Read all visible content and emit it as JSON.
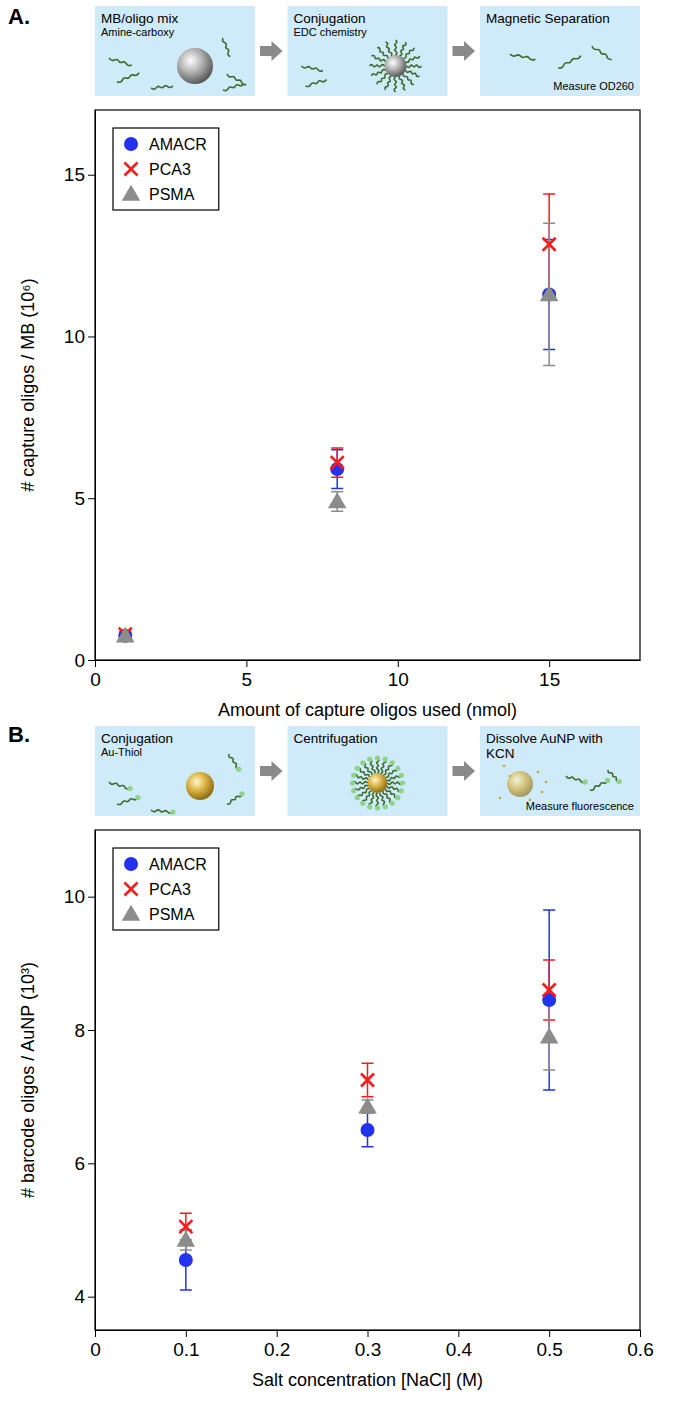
{
  "chart_data": [
    {
      "panel": "A.",
      "schematic": [
        {
          "title": "MB/oligo mix",
          "note": "Amine-carboxy"
        },
        {
          "title": "Conjugation",
          "note": "EDC chemistry"
        },
        {
          "title": "Magnetic Separation",
          "note": "Measure OD260"
        }
      ],
      "type": "scatter",
      "xlabel": "Amount of capture oligos used (nmol)",
      "ylabel": "# capture oligos / MB (10⁶)",
      "x": [
        1,
        8,
        15
      ],
      "xlim": [
        0,
        18
      ],
      "xticks": [
        0,
        5,
        10,
        15
      ],
      "ylim": [
        0,
        17
      ],
      "yticks": [
        0,
        5,
        10,
        15
      ],
      "legend": "upper left",
      "series": [
        {
          "name": "AMACR",
          "color": "#2233ee",
          "marker": "circle",
          "values": [
            0.75,
            5.9,
            11.3
          ],
          "errors": [
            0.1,
            0.6,
            1.7
          ]
        },
        {
          "name": "PCA3",
          "color": "#ff1a1a",
          "marker": "x",
          "values": [
            0.8,
            6.1,
            12.85
          ],
          "errors": [
            0.1,
            0.45,
            1.55
          ]
        },
        {
          "name": "PSMA",
          "color": "#8c8c8c",
          "marker": "triangle",
          "values": [
            0.75,
            4.9,
            11.3
          ],
          "errors": [
            0.1,
            0.3,
            2.2
          ]
        }
      ]
    },
    {
      "panel": "B.",
      "schematic": [
        {
          "title": "Conjugation",
          "note": "Au-Thiol"
        },
        {
          "title": "Centrifugation"
        },
        {
          "title": "Dissolve AuNP with KCN",
          "note": "Measure fluorescence"
        }
      ],
      "type": "scatter",
      "xlabel": "Salt concentration [NaCl] (M)",
      "ylabel": "# barcode oligos / AuNP (10³)",
      "x": [
        0.1,
        0.3,
        0.5
      ],
      "xlim": [
        0,
        0.6
      ],
      "xticks": [
        0,
        0.1,
        0.2,
        0.3,
        0.4,
        0.5,
        0.6
      ],
      "ylim": [
        3.5,
        11
      ],
      "yticks": [
        4,
        6,
        8,
        10
      ],
      "legend": "upper left",
      "series": [
        {
          "name": "AMACR",
          "color": "#2233ee",
          "marker": "circle",
          "values": [
            4.55,
            6.5,
            8.45
          ],
          "errors": [
            0.45,
            0.25,
            1.35
          ]
        },
        {
          "name": "PCA3",
          "color": "#ff1a1a",
          "marker": "x",
          "values": [
            5.05,
            7.25,
            8.6
          ],
          "errors": [
            0.2,
            0.25,
            0.45
          ]
        },
        {
          "name": "PSMA",
          "color": "#8c8c8c",
          "marker": "triangle",
          "values": [
            4.85,
            6.85,
            7.9
          ],
          "errors": [
            0.15,
            0.1,
            0.5
          ]
        }
      ]
    }
  ]
}
